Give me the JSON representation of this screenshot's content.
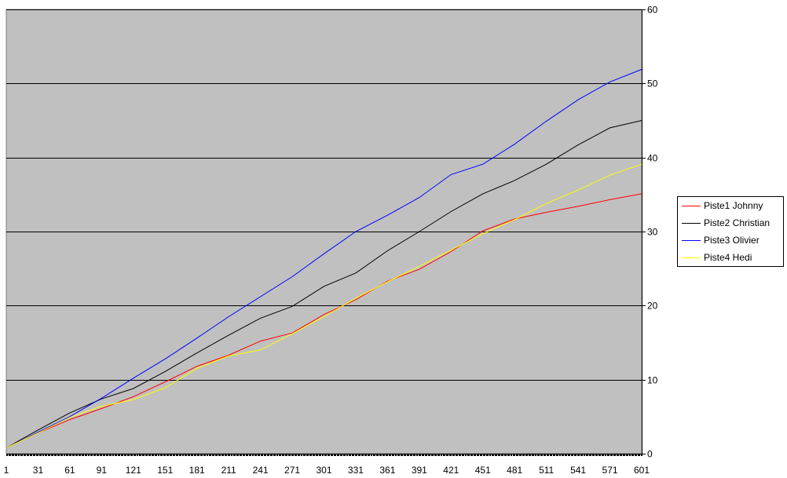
{
  "colors": {
    "plot_background": "#c0c0c0",
    "gridline": "#000000",
    "axis": "#000000",
    "legend_background": "#ffffff"
  },
  "chart_data": {
    "type": "line",
    "title": "",
    "xlabel": "",
    "ylabel": "",
    "xlim": [
      1,
      601
    ],
    "ylim": [
      0,
      60
    ],
    "y_axis_side": "right",
    "grid": "horizontal",
    "legend_position": "right",
    "x_tick_labels": [
      "1",
      "31",
      "61",
      "91",
      "121",
      "151",
      "181",
      "211",
      "241",
      "271",
      "301",
      "331",
      "361",
      "391",
      "421",
      "451",
      "481",
      "511",
      "541",
      "571",
      "601"
    ],
    "y_tick_labels": [
      "0",
      "10",
      "20",
      "30",
      "40",
      "50",
      "60"
    ],
    "x": [
      1,
      31,
      61,
      91,
      121,
      151,
      181,
      211,
      241,
      271,
      301,
      331,
      361,
      391,
      421,
      451,
      481,
      511,
      541,
      571,
      601
    ],
    "series": [
      {
        "name": "Piste1 Johnny",
        "color": "#ff0000",
        "values": [
          0.8,
          2.8,
          4.6,
          6.1,
          7.7,
          9.7,
          11.8,
          13.3,
          15.2,
          16.3,
          18.8,
          20.8,
          23.3,
          24.9,
          27.3,
          30.1,
          31.7,
          32.6,
          33.4,
          34.3,
          35.1
        ]
      },
      {
        "name": "Piste2 Christian",
        "color": "#000000",
        "values": [
          0.8,
          3.2,
          5.5,
          7.4,
          8.8,
          11.1,
          13.6,
          16.0,
          18.3,
          19.9,
          22.6,
          24.4,
          27.4,
          30.0,
          32.7,
          35.1,
          36.9,
          39.1,
          41.7,
          44.0,
          45.0
        ]
      },
      {
        "name": "Piste3 Olivier",
        "color": "#0000ff",
        "values": [
          0.8,
          2.9,
          5.0,
          7.5,
          10.2,
          12.8,
          15.6,
          18.5,
          21.2,
          23.9,
          27.0,
          30.0,
          32.2,
          34.6,
          37.7,
          39.1,
          41.8,
          44.9,
          47.8,
          50.2,
          51.9
        ]
      },
      {
        "name": "Piste4 Hedi",
        "color": "#ffff00",
        "values": [
          0.8,
          2.8,
          4.9,
          6.4,
          7.3,
          8.9,
          11.5,
          13.2,
          14.0,
          16.2,
          18.5,
          21.0,
          23.2,
          25.3,
          27.5,
          29.7,
          31.6,
          33.8,
          35.6,
          37.6,
          39.1
        ]
      }
    ]
  }
}
